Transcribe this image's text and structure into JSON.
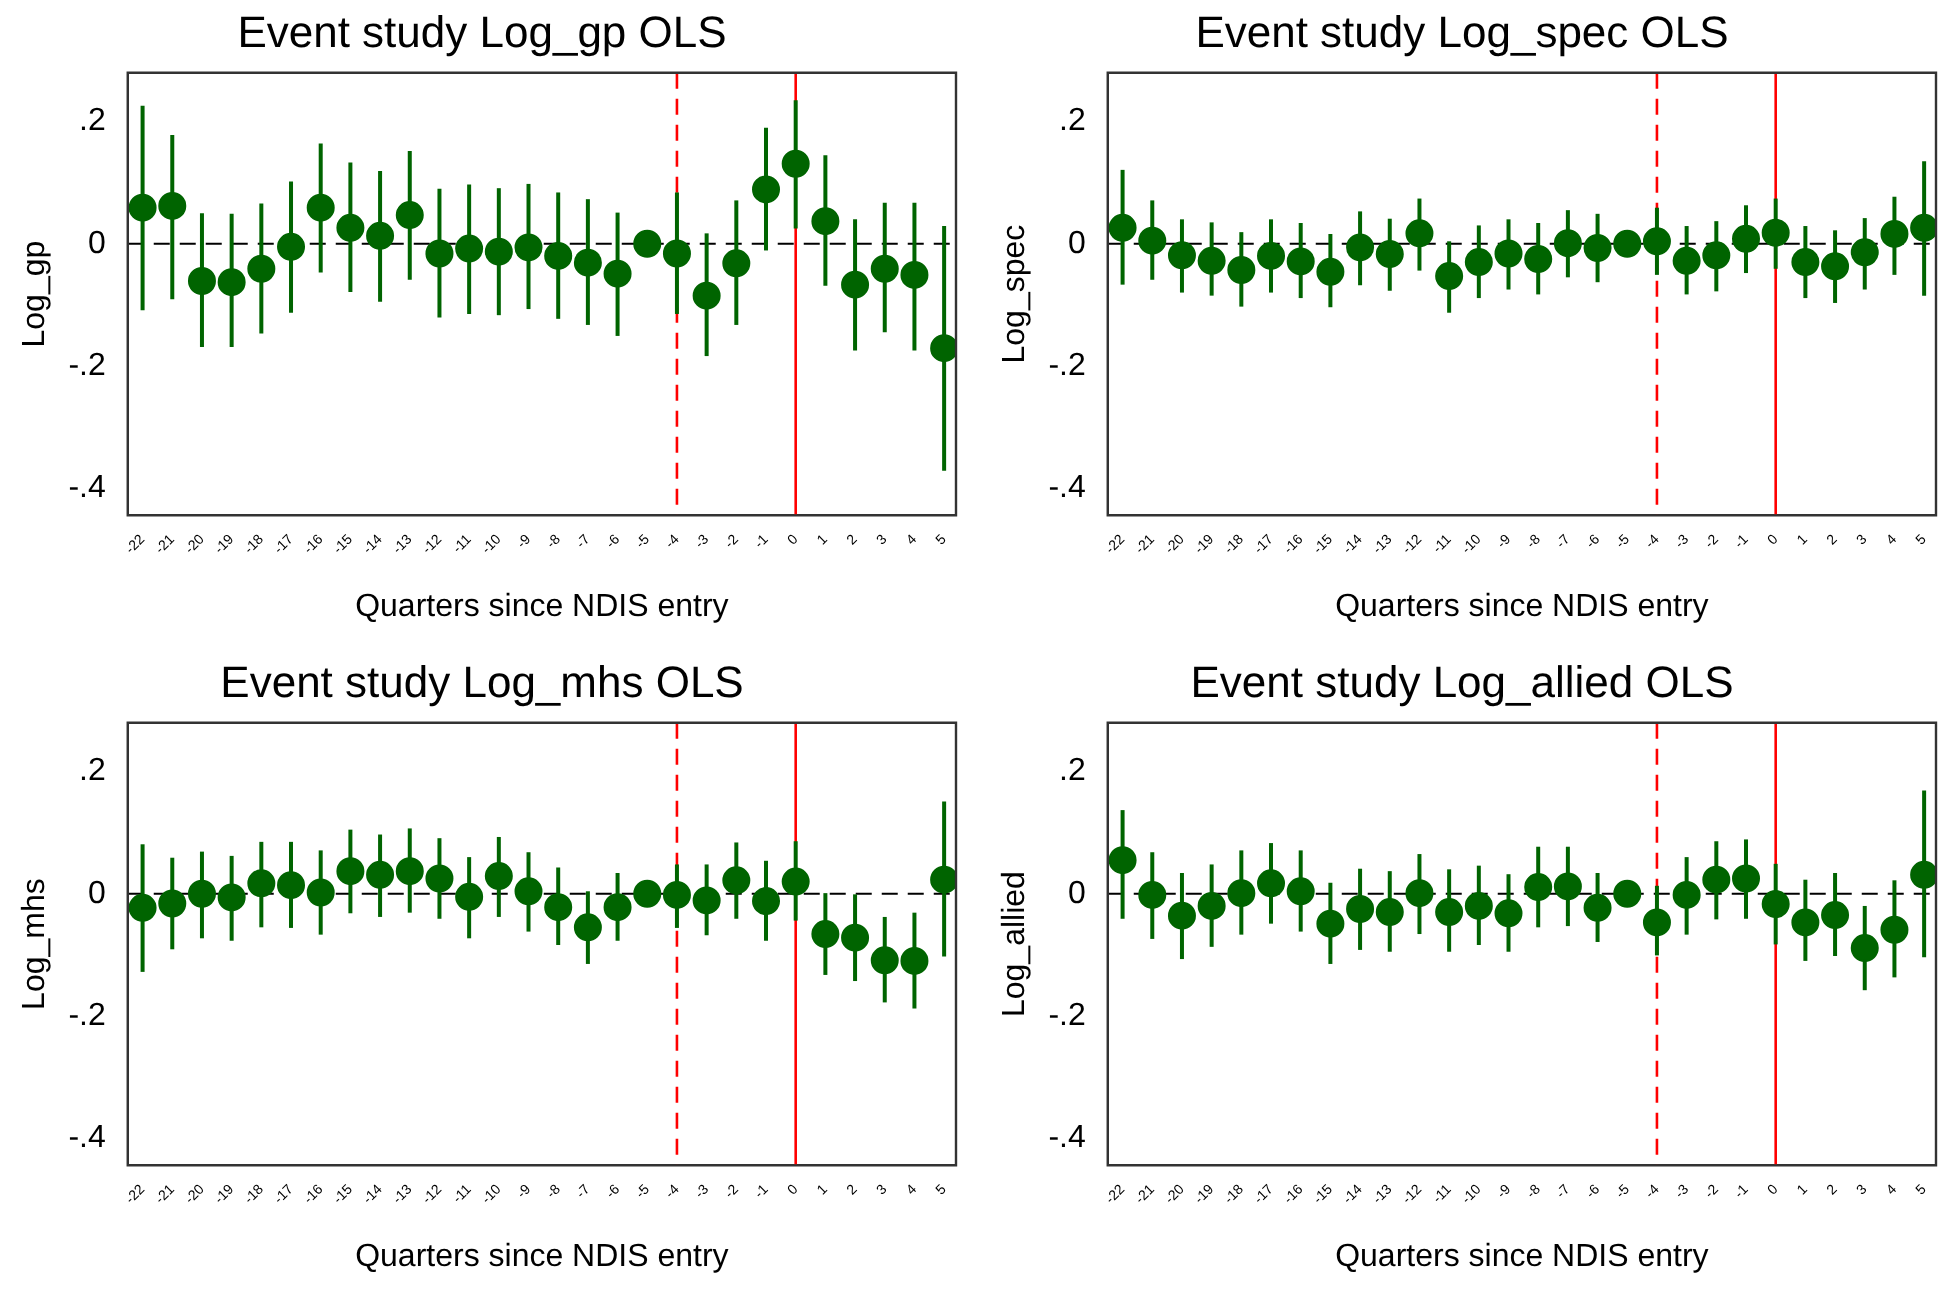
{
  "chart_data": [
    {
      "type": "scatter",
      "title": "Event study Log_gp OLS",
      "xlabel": "Quarters since NDIS entry",
      "ylabel": "Log_gp",
      "marker": "circle",
      "color": "#006400",
      "grid": false,
      "legend": false,
      "x": [
        -22,
        -21,
        -20,
        -19,
        -18,
        -17,
        -16,
        -15,
        -14,
        -13,
        -12,
        -11,
        -10,
        -9,
        -8,
        -7,
        -6,
        -5,
        -4,
        -3,
        -2,
        -1,
        0,
        1,
        2,
        3,
        4,
        5
      ],
      "values": [
        0.059,
        0.062,
        -0.061,
        -0.063,
        -0.041,
        -0.005,
        0.059,
        0.026,
        0.013,
        0.047,
        -0.016,
        -0.008,
        -0.013,
        -0.006,
        -0.02,
        -0.031,
        -0.049,
        0,
        -0.016,
        -0.085,
        -0.032,
        0.089,
        0.131,
        0.037,
        -0.067,
        -0.041,
        -0.051,
        -0.171
      ],
      "errors": [
        [
          -0.109,
          0.226
        ],
        [
          -0.091,
          0.178
        ],
        [
          -0.169,
          0.05
        ],
        [
          -0.169,
          0.049
        ],
        [
          -0.147,
          0.066
        ],
        [
          -0.113,
          0.102
        ],
        [
          -0.047,
          0.164
        ],
        [
          -0.079,
          0.133
        ],
        [
          -0.095,
          0.119
        ],
        [
          -0.059,
          0.152
        ],
        [
          -0.121,
          0.09
        ],
        [
          -0.115,
          0.097
        ],
        [
          -0.117,
          0.091
        ],
        [
          -0.107,
          0.098
        ],
        [
          -0.123,
          0.084
        ],
        [
          -0.133,
          0.073
        ],
        [
          -0.151,
          0.051
        ],
        null,
        [
          -0.115,
          0.084
        ],
        [
          -0.184,
          0.017
        ],
        [
          -0.133,
          0.071
        ],
        [
          -0.011,
          0.19
        ],
        [
          0.025,
          0.235
        ],
        [
          -0.069,
          0.145
        ],
        [
          -0.175,
          0.04
        ],
        [
          -0.145,
          0.067
        ],
        [
          -0.175,
          0.067
        ],
        [
          -0.372,
          0.029
        ]
      ],
      "xlim": [
        -22.5,
        5.4
      ],
      "xticks": [
        -22,
        -21,
        -20,
        -19,
        -18,
        -17,
        -16,
        -15,
        -14,
        -13,
        -12,
        -11,
        -10,
        -9,
        -8,
        -7,
        -6,
        -5,
        -4,
        -3,
        -2,
        -1,
        0,
        1,
        2,
        3,
        4,
        5
      ],
      "ylim": [
        -0.445,
        0.28
      ],
      "yticks": [
        {
          "value": -0.4,
          "label": "-.4"
        },
        {
          "value": -0.2,
          "label": "-.2"
        },
        {
          "value": 0,
          "label": "0"
        },
        {
          "value": 0.2,
          "label": ".2"
        }
      ],
      "ref_lines": [
        {
          "axis": "y",
          "value": 0,
          "color": "#000000",
          "line_style": "dashed"
        },
        {
          "axis": "x",
          "value": -4,
          "color": "#ff0000",
          "line_style": "dashed"
        },
        {
          "axis": "x",
          "value": 0,
          "color": "#ff0000",
          "line_style": "solid"
        }
      ]
    },
    {
      "type": "scatter",
      "title": "Event study Log_spec OLS",
      "xlabel": "Quarters since NDIS entry",
      "ylabel": "Log_spec",
      "marker": "circle",
      "color": "#006400",
      "grid": false,
      "legend": false,
      "x": [
        -22,
        -21,
        -20,
        -19,
        -18,
        -17,
        -16,
        -15,
        -14,
        -13,
        -12,
        -11,
        -10,
        -9,
        -8,
        -7,
        -6,
        -5,
        -4,
        -3,
        -2,
        -1,
        0,
        1,
        2,
        3,
        4,
        5
      ],
      "values": [
        0.026,
        0.005,
        -0.019,
        -0.028,
        -0.043,
        -0.02,
        -0.029,
        -0.046,
        -0.006,
        -0.017,
        0.017,
        -0.053,
        -0.03,
        -0.016,
        -0.025,
        0.001,
        -0.007,
        0,
        0.004,
        -0.028,
        -0.019,
        0.008,
        0.018,
        -0.03,
        -0.037,
        -0.014,
        0.016,
        0.026
      ],
      "errors": [
        [
          -0.067,
          0.121
        ],
        [
          -0.059,
          0.071
        ],
        [
          -0.08,
          0.04
        ],
        [
          -0.085,
          0.035
        ],
        [
          -0.103,
          0.019
        ],
        [
          -0.08,
          0.04
        ],
        [
          -0.089,
          0.034
        ],
        [
          -0.104,
          0.016
        ],
        [
          -0.068,
          0.053
        ],
        [
          -0.077,
          0.041
        ],
        [
          -0.044,
          0.074
        ],
        [
          -0.113,
          0.004
        ],
        [
          -0.089,
          0.03
        ],
        [
          -0.075,
          0.04
        ],
        [
          -0.083,
          0.034
        ],
        [
          -0.055,
          0.055
        ],
        [
          -0.063,
          0.049
        ],
        null,
        [
          -0.051,
          0.059
        ],
        [
          -0.083,
          0.029
        ],
        [
          -0.078,
          0.037
        ],
        [
          -0.048,
          0.063
        ],
        [
          -0.041,
          0.074
        ],
        [
          -0.089,
          0.029
        ],
        [
          -0.097,
          0.022
        ],
        [
          -0.075,
          0.042
        ],
        [
          -0.051,
          0.077
        ],
        [
          -0.085,
          0.135
        ]
      ],
      "xlim": [
        -22.5,
        5.4
      ],
      "xticks": [
        -22,
        -21,
        -20,
        -19,
        -18,
        -17,
        -16,
        -15,
        -14,
        -13,
        -12,
        -11,
        -10,
        -9,
        -8,
        -7,
        -6,
        -5,
        -4,
        -3,
        -2,
        -1,
        0,
        1,
        2,
        3,
        4,
        5
      ],
      "ylim": [
        -0.445,
        0.28
      ],
      "yticks": [
        {
          "value": -0.4,
          "label": "-.4"
        },
        {
          "value": -0.2,
          "label": "-.2"
        },
        {
          "value": 0,
          "label": "0"
        },
        {
          "value": 0.2,
          "label": ".2"
        }
      ],
      "ref_lines": [
        {
          "axis": "y",
          "value": 0,
          "color": "#000000",
          "line_style": "dashed"
        },
        {
          "axis": "x",
          "value": -4,
          "color": "#ff0000",
          "line_style": "dashed"
        },
        {
          "axis": "x",
          "value": 0,
          "color": "#ff0000",
          "line_style": "solid"
        }
      ]
    },
    {
      "type": "scatter",
      "title": "Event study Log_mhs OLS",
      "xlabel": "Quarters since NDIS entry",
      "ylabel": "Log_mhs",
      "marker": "circle",
      "color": "#006400",
      "grid": false,
      "legend": false,
      "x": [
        -22,
        -21,
        -20,
        -19,
        -18,
        -17,
        -16,
        -15,
        -14,
        -13,
        -12,
        -11,
        -10,
        -9,
        -8,
        -7,
        -6,
        -5,
        -4,
        -3,
        -2,
        -1,
        0,
        1,
        2,
        3,
        4,
        5
      ],
      "values": [
        -0.023,
        -0.016,
        0,
        -0.006,
        0.017,
        0.014,
        0.002,
        0.037,
        0.031,
        0.037,
        0.025,
        -0.005,
        0.029,
        0.004,
        -0.022,
        -0.055,
        -0.022,
        0,
        -0.002,
        -0.011,
        0.022,
        -0.012,
        0.02,
        -0.066,
        -0.072,
        -0.109,
        -0.11,
        0.023
      ],
      "errors": [
        [
          -0.128,
          0.081
        ],
        [
          -0.091,
          0.059
        ],
        [
          -0.073,
          0.069
        ],
        [
          -0.077,
          0.062
        ],
        [
          -0.055,
          0.085
        ],
        [
          -0.056,
          0.085
        ],
        [
          -0.067,
          0.071
        ],
        [
          -0.032,
          0.105
        ],
        [
          -0.038,
          0.097
        ],
        [
          -0.031,
          0.107
        ],
        [
          -0.041,
          0.091
        ],
        [
          -0.073,
          0.06
        ],
        [
          -0.038,
          0.093
        ],
        [
          -0.062,
          0.068
        ],
        [
          -0.084,
          0.043
        ],
        [
          -0.115,
          0.004
        ],
        [
          -0.077,
          0.034
        ],
        null,
        [
          -0.056,
          0.048
        ],
        [
          -0.068,
          0.048
        ],
        [
          -0.041,
          0.084
        ],
        [
          -0.077,
          0.054
        ],
        [
          -0.044,
          0.086
        ],
        [
          -0.133,
          0.001
        ],
        [
          -0.143,
          -0.001
        ],
        [
          -0.178,
          -0.038
        ],
        [
          -0.188,
          -0.031
        ],
        [
          -0.103,
          0.151
        ]
      ],
      "xlim": [
        -22.5,
        5.4
      ],
      "xticks": [
        -22,
        -21,
        -20,
        -19,
        -18,
        -17,
        -16,
        -15,
        -14,
        -13,
        -12,
        -11,
        -10,
        -9,
        -8,
        -7,
        -6,
        -5,
        -4,
        -3,
        -2,
        -1,
        0,
        1,
        2,
        3,
        4,
        5
      ],
      "ylim": [
        -0.445,
        0.28
      ],
      "yticks": [
        {
          "value": -0.4,
          "label": "-.4"
        },
        {
          "value": -0.2,
          "label": "-.2"
        },
        {
          "value": 0,
          "label": "0"
        },
        {
          "value": 0.2,
          "label": ".2"
        }
      ],
      "ref_lines": [
        {
          "axis": "y",
          "value": 0,
          "color": "#000000",
          "line_style": "dashed"
        },
        {
          "axis": "x",
          "value": -4,
          "color": "#ff0000",
          "line_style": "dashed"
        },
        {
          "axis": "x",
          "value": 0,
          "color": "#ff0000",
          "line_style": "solid"
        }
      ]
    },
    {
      "type": "scatter",
      "title": "Event study Log_allied OLS",
      "xlabel": "Quarters since NDIS entry",
      "ylabel": "Log_allied",
      "marker": "circle",
      "color": "#006400",
      "grid": false,
      "legend": false,
      "x": [
        -22,
        -21,
        -20,
        -19,
        -18,
        -17,
        -16,
        -15,
        -14,
        -13,
        -12,
        -11,
        -10,
        -9,
        -8,
        -7,
        -6,
        -5,
        -4,
        -3,
        -2,
        -1,
        0,
        1,
        2,
        3,
        4,
        5
      ],
      "values": [
        0.055,
        -0.002,
        -0.036,
        -0.02,
        0.001,
        0.017,
        0.004,
        -0.049,
        -0.025,
        -0.03,
        0.001,
        -0.03,
        -0.02,
        -0.032,
        0.011,
        0.012,
        -0.023,
        0,
        -0.047,
        -0.002,
        0.023,
        0.025,
        -0.017,
        -0.047,
        -0.035,
        -0.089,
        -0.059,
        0.031
      ],
      "errors": [
        [
          -0.041,
          0.137
        ],
        [
          -0.074,
          0.068
        ],
        [
          -0.107,
          0.034
        ],
        [
          -0.087,
          0.048
        ],
        [
          -0.067,
          0.071
        ],
        [
          -0.049,
          0.083
        ],
        [
          -0.062,
          0.071
        ],
        [
          -0.115,
          0.018
        ],
        [
          -0.092,
          0.041
        ],
        [
          -0.095,
          0.037
        ],
        [
          -0.066,
          0.065
        ],
        [
          -0.095,
          0.04
        ],
        [
          -0.084,
          0.046
        ],
        [
          -0.095,
          0.032
        ],
        [
          -0.055,
          0.077
        ],
        [
          -0.053,
          0.077
        ],
        [
          -0.079,
          0.034
        ],
        null,
        [
          -0.101,
          0.013
        ],
        [
          -0.067,
          0.06
        ],
        [
          -0.042,
          0.086
        ],
        [
          -0.041,
          0.089
        ],
        [
          -0.083,
          0.049
        ],
        [
          -0.11,
          0.023
        ],
        [
          -0.102,
          0.034
        ],
        [
          -0.158,
          -0.02
        ],
        [
          -0.137,
          0.022
        ],
        [
          -0.104,
          0.169
        ]
      ],
      "xlim": [
        -22.5,
        5.4
      ],
      "xticks": [
        -22,
        -21,
        -20,
        -19,
        -18,
        -17,
        -16,
        -15,
        -14,
        -13,
        -12,
        -11,
        -10,
        -9,
        -8,
        -7,
        -6,
        -5,
        -4,
        -3,
        -2,
        -1,
        0,
        1,
        2,
        3,
        4,
        5
      ],
      "ylim": [
        -0.445,
        0.28
      ],
      "yticks": [
        {
          "value": -0.4,
          "label": "-.4"
        },
        {
          "value": -0.2,
          "label": "-.2"
        },
        {
          "value": 0,
          "label": "0"
        },
        {
          "value": 0.2,
          "label": ".2"
        }
      ],
      "ref_lines": [
        {
          "axis": "y",
          "value": 0,
          "color": "#000000",
          "line_style": "dashed"
        },
        {
          "axis": "x",
          "value": -4,
          "color": "#ff0000",
          "line_style": "dashed"
        },
        {
          "axis": "x",
          "value": 0,
          "color": "#ff0000",
          "line_style": "solid"
        }
      ]
    }
  ]
}
